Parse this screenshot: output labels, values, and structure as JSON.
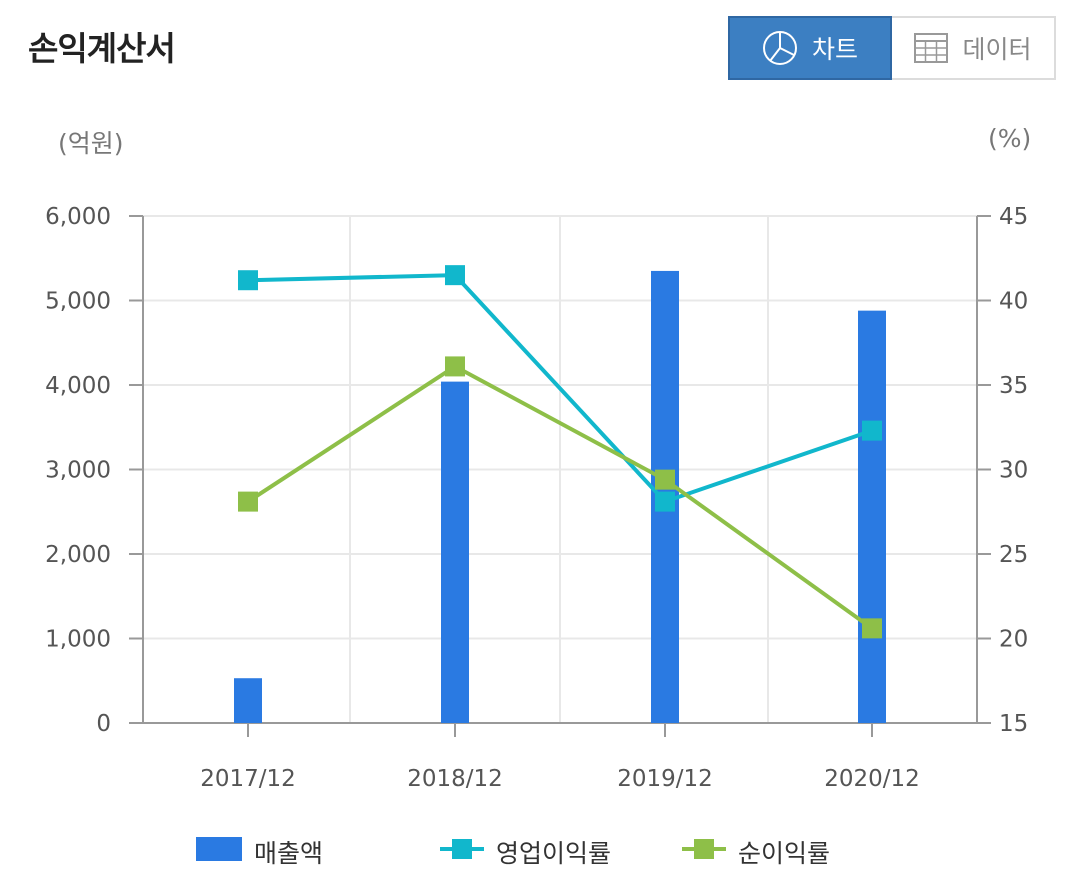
{
  "header": {
    "title": "손익계산서"
  },
  "toggle": {
    "chart_label": "차트",
    "table_label": "데이터"
  },
  "units": {
    "left": "(억원)",
    "right": "(%)"
  },
  "colors": {
    "bar": "#2a7ae2",
    "op_margin": "#11b7cc",
    "net_margin": "#8ebf48",
    "grid": "#e8e8e8",
    "axis": "#999999"
  },
  "legend": [
    {
      "label": "매출액",
      "kind": "bar"
    },
    {
      "label": "영업이익률",
      "kind": "line",
      "color": "#11b7cc"
    },
    {
      "label": "순이익률",
      "kind": "line",
      "color": "#8ebf48"
    }
  ],
  "chart_data": {
    "type": "bar+line",
    "categories": [
      "2017/12",
      "2018/12",
      "2019/12",
      "2020/12"
    ],
    "y_left": {
      "ticks": [
        "0",
        "1,000",
        "2,000",
        "3,000",
        "4,000",
        "5,000",
        "6,000"
      ],
      "ylim": [
        0,
        6000
      ]
    },
    "y_right": {
      "ticks": [
        "15",
        "20",
        "25",
        "30",
        "35",
        "40",
        "45"
      ],
      "ylim": [
        15,
        45
      ]
    },
    "series": [
      {
        "name": "매출액",
        "type": "bar",
        "axis": "left",
        "values": [
          530,
          4040,
          5350,
          4880
        ]
      },
      {
        "name": "영업이익률",
        "type": "line",
        "axis": "right",
        "values": [
          41.2,
          41.5,
          28.1,
          32.3
        ]
      },
      {
        "name": "순이익률",
        "type": "line",
        "axis": "right",
        "values": [
          28.1,
          36.1,
          29.4,
          20.6
        ]
      }
    ],
    "grid": true,
    "legend_position": "bottom"
  }
}
